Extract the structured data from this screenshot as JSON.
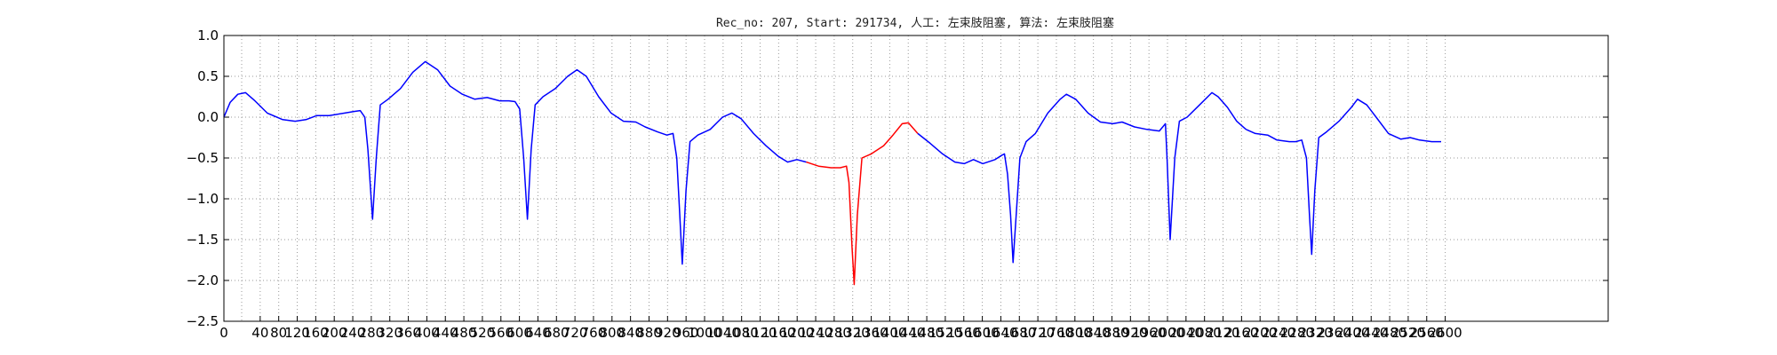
{
  "chart_data": {
    "type": "line",
    "title": "Rec_no: 207, Start: 291734, 人工: 左束肢阻塞, 算法: 左束肢阻塞",
    "xlabel": "",
    "ylabel": "",
    "xlim": [
      0,
      3300
    ],
    "ylim": [
      -2.5,
      1.0
    ],
    "yticks": [
      "1.0",
      "0.5",
      "0.0",
      "−0.5",
      "−1.0",
      "−1.5",
      "−2.0",
      "−2.5"
    ],
    "ytick_values": [
      1.0,
      0.5,
      0.0,
      -0.5,
      -1.0,
      -1.5,
      -2.0,
      -2.5
    ],
    "xticks": [
      "0",
      "40",
      "80",
      "120",
      "160",
      "200",
      "240",
      "280",
      "320",
      "360",
      "400",
      "440",
      "480",
      "520",
      "560",
      "600",
      "640",
      "680",
      "720",
      "760",
      "800",
      "840",
      "880",
      "920",
      "960",
      "1000",
      "1040",
      "1080",
      "1120",
      "1160",
      "1200",
      "1240",
      "1280",
      "1320",
      "1360",
      "1400",
      "1440",
      "1480",
      "1520",
      "1560",
      "1600",
      "1640",
      "1680",
      "1720",
      "1760",
      "1800",
      "1840",
      "1880",
      "1920",
      "1960",
      "2000",
      "2040",
      "2080",
      "2120",
      "2160",
      "2200",
      "2240",
      "2280",
      "2320",
      "2360",
      "2400",
      "2440",
      "2480",
      "2520",
      "2560",
      "2600"
    ],
    "grid": true,
    "colors": {
      "normal": "#0000ff",
      "highlight": "#ff0000"
    },
    "series": [
      {
        "color": "#0000ff",
        "points": [
          [
            0,
            0.0
          ],
          [
            20,
            0.18
          ],
          [
            45,
            0.28
          ],
          [
            70,
            0.3
          ],
          [
            100,
            0.2
          ],
          [
            140,
            0.05
          ],
          [
            190,
            -0.03
          ],
          [
            230,
            -0.05
          ],
          [
            265,
            -0.03
          ],
          [
            300,
            0.02
          ],
          [
            340,
            0.02
          ],
          [
            390,
            0.05
          ],
          [
            420,
            0.07
          ],
          [
            440,
            0.08
          ],
          [
            455,
            0.0
          ],
          [
            465,
            -0.4
          ],
          [
            480,
            -1.25
          ],
          [
            492,
            -0.5
          ],
          [
            505,
            0.15
          ],
          [
            530,
            0.22
          ],
          [
            570,
            0.35
          ],
          [
            610,
            0.55
          ],
          [
            650,
            0.68
          ],
          [
            690,
            0.58
          ],
          [
            730,
            0.38
          ],
          [
            770,
            0.28
          ],
          [
            810,
            0.22
          ],
          [
            850,
            0.24
          ],
          [
            890,
            0.2
          ],
          [
            920,
            0.2
          ],
          [
            940,
            0.19
          ],
          [
            955,
            0.1
          ],
          [
            968,
            -0.5
          ],
          [
            980,
            -1.25
          ],
          [
            992,
            -0.4
          ],
          [
            1005,
            0.15
          ],
          [
            1030,
            0.25
          ],
          [
            1070,
            0.35
          ],
          [
            1110,
            0.5
          ],
          [
            1140,
            0.58
          ],
          [
            1170,
            0.5
          ],
          [
            1210,
            0.25
          ],
          [
            1250,
            0.05
          ],
          [
            1290,
            -0.05
          ],
          [
            1330,
            -0.06
          ],
          [
            1360,
            -0.12
          ],
          [
            1400,
            -0.18
          ],
          [
            1430,
            -0.22
          ],
          [
            1450,
            -0.2
          ],
          [
            1462,
            -0.5
          ],
          [
            1472,
            -1.2
          ],
          [
            1480,
            -1.8
          ],
          [
            1492,
            -0.9
          ],
          [
            1505,
            -0.3
          ],
          [
            1530,
            -0.22
          ],
          [
            1570,
            -0.15
          ],
          [
            1610,
            0.0
          ],
          [
            1640,
            0.05
          ],
          [
            1670,
            -0.02
          ],
          [
            1710,
            -0.2
          ],
          [
            1750,
            -0.35
          ],
          [
            1790,
            -0.48
          ],
          [
            1820,
            -0.55
          ],
          [
            1850,
            -0.52
          ],
          [
            1880,
            -0.55
          ]
        ]
      },
      {
        "color": "#ff0000",
        "points": [
          [
            1880,
            -0.55
          ],
          [
            1920,
            -0.6
          ],
          [
            1960,
            -0.62
          ],
          [
            1990,
            -0.62
          ],
          [
            2010,
            -0.6
          ],
          [
            2018,
            -0.8
          ],
          [
            2028,
            -1.6
          ],
          [
            2035,
            -2.05
          ],
          [
            2045,
            -1.2
          ],
          [
            2060,
            -0.5
          ],
          [
            2090,
            -0.45
          ],
          [
            2130,
            -0.35
          ],
          [
            2160,
            -0.22
          ],
          [
            2190,
            -0.08
          ],
          [
            2210,
            -0.07
          ],
          [
            2240,
            -0.2
          ]
        ]
      },
      {
        "color": "#0000ff",
        "points": [
          [
            2240,
            -0.2
          ],
          [
            2280,
            -0.32
          ],
          [
            2320,
            -0.45
          ],
          [
            2360,
            -0.55
          ],
          [
            2390,
            -0.57
          ],
          [
            2420,
            -0.52
          ],
          [
            2450,
            -0.57
          ],
          [
            2490,
            -0.52
          ],
          [
            2510,
            -0.47
          ],
          [
            2520,
            -0.45
          ],
          [
            2530,
            -0.7
          ],
          [
            2540,
            -1.2
          ],
          [
            2548,
            -1.78
          ],
          [
            2558,
            -1.2
          ],
          [
            2570,
            -0.5
          ],
          [
            2590,
            -0.3
          ],
          [
            2620,
            -0.2
          ],
          [
            2660,
            0.05
          ],
          [
            2700,
            0.22
          ],
          [
            2720,
            0.28
          ],
          [
            2750,
            0.22
          ],
          [
            2790,
            0.05
          ],
          [
            2830,
            -0.06
          ],
          [
            2870,
            -0.08
          ],
          [
            2900,
            -0.06
          ],
          [
            2940,
            -0.12
          ],
          [
            2980,
            -0.15
          ],
          [
            3020,
            -0.17
          ],
          [
            3040,
            -0.08
          ],
          [
            3045,
            -0.5
          ],
          [
            3055,
            -1.5
          ],
          [
            3070,
            -0.5
          ],
          [
            3085,
            -0.05
          ],
          [
            3110,
            0.0
          ],
          [
            3150,
            0.15
          ],
          [
            3190,
            0.3
          ],
          [
            3210,
            0.25
          ],
          [
            3240,
            0.12
          ],
          [
            3270,
            -0.05
          ],
          [
            3300,
            -0.15
          ]
        ]
      },
      {
        "color": "#0000ff",
        "points": [
          [
            3300,
            -0.15
          ],
          [
            3330,
            -0.2
          ],
          [
            3370,
            -0.22
          ],
          [
            3400,
            -0.28
          ],
          [
            3440,
            -0.3
          ],
          [
            3460,
            -0.3
          ],
          [
            3480,
            -0.28
          ],
          [
            3495,
            -0.5
          ],
          [
            3505,
            -1.2
          ],
          [
            3512,
            -1.68
          ],
          [
            3522,
            -0.9
          ],
          [
            3535,
            -0.25
          ],
          [
            3560,
            -0.18
          ],
          [
            3600,
            -0.05
          ],
          [
            3640,
            0.12
          ],
          [
            3660,
            0.22
          ],
          [
            3690,
            0.15
          ],
          [
            3720,
            0.0
          ],
          [
            3760,
            -0.2
          ],
          [
            3800,
            -0.27
          ],
          [
            3830,
            -0.25
          ],
          [
            3860,
            -0.28
          ],
          [
            3900,
            -0.3
          ],
          [
            3930,
            -0.3
          ]
        ]
      }
    ]
  }
}
